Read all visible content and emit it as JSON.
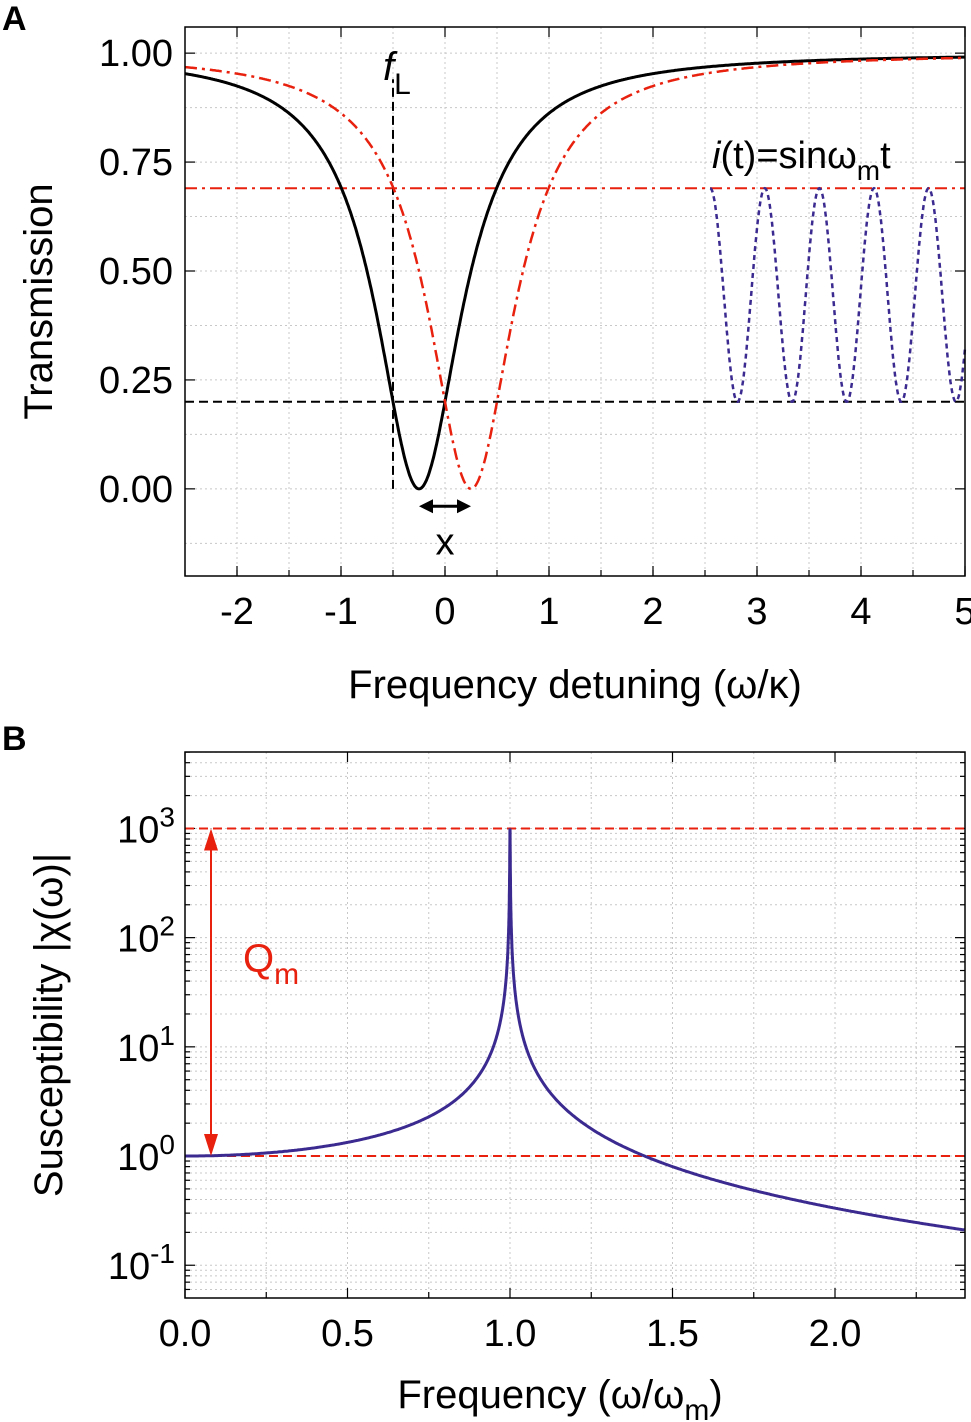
{
  "chart_data": [
    {
      "panel_label": "A",
      "type": "line",
      "xlabel_parts": [
        "Frequency detuning (ω/κ)"
      ],
      "ylabel": "Transmission",
      "xlim": [
        -2.5,
        5
      ],
      "ylim": [
        -0.2,
        1.06
      ],
      "x_ticks": [
        -2,
        -1,
        0,
        1,
        2,
        3,
        4,
        5
      ],
      "x_tick_labels": [
        "-2",
        "-1",
        "0",
        "1",
        "2",
        "3",
        "4",
        "5"
      ],
      "y_ticks": [
        0,
        0.25,
        0.5,
        0.75,
        1.0
      ],
      "y_tick_labels": [
        "0.00",
        "0.25",
        "0.50",
        "0.75",
        "1.00"
      ],
      "grid": true,
      "series": [
        {
          "name": "cavity transmission (resonance at -0.25)",
          "kind": "lorentzian-dip",
          "center": -0.25,
          "halfwidth": 0.5,
          "color": "#000000",
          "style": "solid"
        },
        {
          "name": "shifted cavity transmission (resonance at +0.25)",
          "kind": "lorentzian-dip",
          "center": 0.25,
          "halfwidth": 0.5,
          "color": "#e8210f",
          "style": "dashdot"
        },
        {
          "name": "i(t) modulation",
          "kind": "sine",
          "x_start": 2.55,
          "x_end": 5.0,
          "period": 0.525,
          "y_min": 0.2,
          "y_max": 0.69,
          "color": "#3b2a8f",
          "style": "dotted"
        }
      ],
      "reference_lines": [
        {
          "orientation": "horizontal",
          "y": 0.69,
          "color": "#e8210f",
          "style": "dashdot"
        },
        {
          "orientation": "horizontal",
          "y": 0.2,
          "color": "#000000",
          "style": "dashed"
        },
        {
          "orientation": "vertical",
          "x": -0.5,
          "y_from": 0.0,
          "y_to": 0.94,
          "color": "#000000",
          "style": "dashed"
        }
      ],
      "annotations": {
        "fL": {
          "main": "f",
          "sub": "L",
          "x": -0.5
        },
        "shift": {
          "text": "x",
          "x_from": -0.25,
          "x_to": 0.25,
          "y": -0.04
        },
        "current": {
          "parts": [
            "i",
            "(t)=sinω",
            "m",
            "t"
          ]
        }
      }
    },
    {
      "panel_label": "B",
      "type": "line",
      "xlabel_parts": [
        "Frequency (ω/ω",
        "m",
        ")"
      ],
      "ylabel": "Susceptibility |χ(ω)|",
      "xlim": [
        0,
        2.4
      ],
      "ylim_log10": [
        -1.3,
        3.7
      ],
      "yscale": "log",
      "x_ticks": [
        0,
        0.5,
        1.0,
        1.5,
        2.0
      ],
      "x_tick_labels": [
        "0.0",
        "0.5",
        "1.0",
        "1.5",
        "2.0"
      ],
      "y_tick_base": "10",
      "y_tick_exponents": [
        "-1",
        "0",
        "1",
        "2",
        "3"
      ],
      "grid": true,
      "series": [
        {
          "name": "|χ(ω)|",
          "kind": "harmonic-oscillator",
          "Q": 1000,
          "color": "#3b2a8f",
          "style": "solid"
        }
      ],
      "reference_lines": [
        {
          "orientation": "horizontal",
          "y": 1000,
          "color": "#e8210f",
          "style": "dashed"
        },
        {
          "orientation": "horizontal",
          "y": 1,
          "color": "#e8210f",
          "style": "dashed"
        }
      ],
      "annotations": {
        "Qm": {
          "main": "Q",
          "sub": "m",
          "arrow_x": 0.08,
          "from": 1,
          "to": 1000,
          "color": "#e8210f"
        }
      }
    }
  ]
}
